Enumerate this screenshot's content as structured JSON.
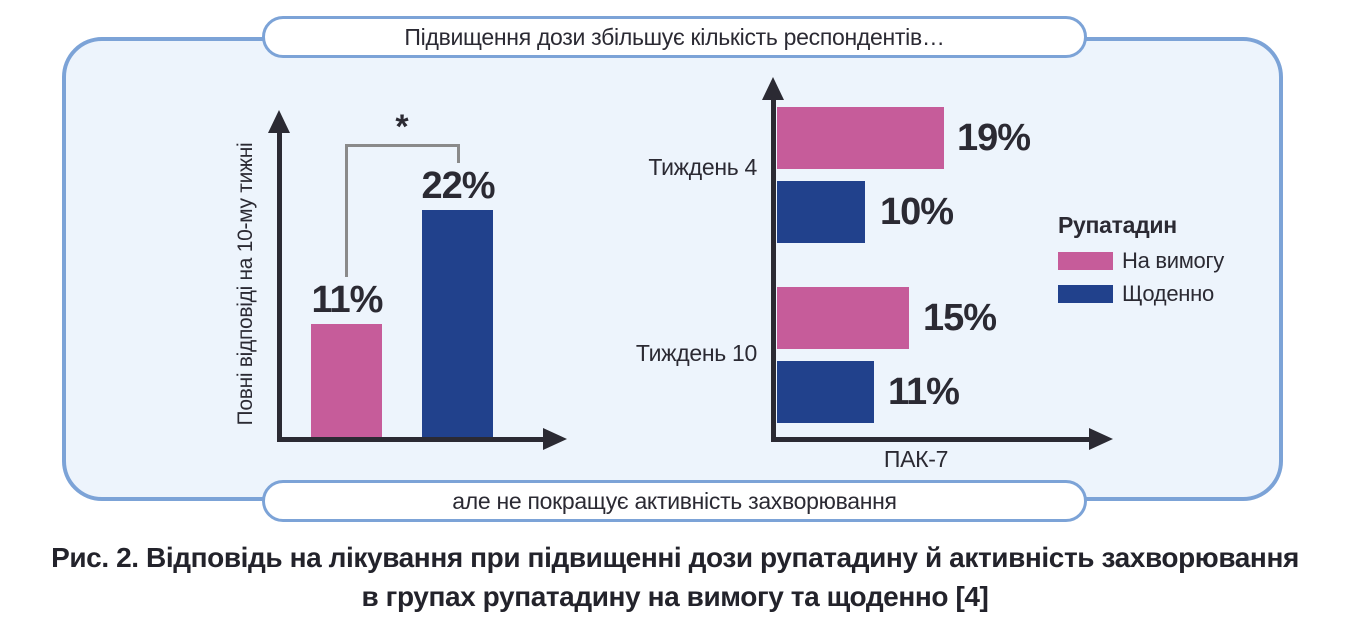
{
  "colors": {
    "on_demand_pink": "#C65C9A",
    "daily_blue": "#21418C",
    "panel_bg": "#EDF4FC",
    "panel_border": "#7CA3D7",
    "axis": "#2B2A33",
    "bracket_gray": "#8A8A8A",
    "caption_text": "#23232B"
  },
  "banners": {
    "top": "Підвищення дози збільшує кількість респондентів…",
    "bottom": "але не покращує активність захворювання"
  },
  "legend": {
    "title": "Рупатадин",
    "items": [
      {
        "label": "На вимогу",
        "color": "#C65C9A"
      },
      {
        "label": "Щоденно",
        "color": "#21418C"
      }
    ]
  },
  "caption": {
    "line1": "Рис. 2. Відповідь на лікування при підвищенні дози рупатадину й активність захворювання",
    "line2": "в групах рупатадину на вимогу та щоденно [4]"
  },
  "chart_data": [
    {
      "id": "complete-responses",
      "type": "bar",
      "orientation": "vertical",
      "title": "",
      "xlabel": "",
      "ylabel": "Повні відповіді на 10-му тижні",
      "categories": [
        "На вимогу",
        "Щоденно"
      ],
      "values": [
        11,
        22
      ],
      "points": [
        {
          "category": "На вимогу",
          "value": 11,
          "label": "11%",
          "color": "#C65C9A"
        },
        {
          "category": "Щоденно",
          "value": 22,
          "label": "22%",
          "color": "#21418C"
        }
      ],
      "significance_marker": "*",
      "ylim": [
        0,
        25
      ],
      "grid": false,
      "legend_position": "none"
    },
    {
      "id": "pak7-disease-activity",
      "type": "bar",
      "orientation": "horizontal",
      "title": "",
      "xlabel": "ПАК-7",
      "ylabel": "",
      "categories": [
        "Тиждень 4",
        "Тиждень 10"
      ],
      "series": [
        {
          "name": "На вимогу",
          "values": [
            19,
            15
          ],
          "color": "#C65C9A"
        },
        {
          "name": "Щоденно",
          "values": [
            10,
            11
          ],
          "color": "#21418C"
        }
      ],
      "bars": [
        {
          "week": "Тиждень 4",
          "regimen": "На вимогу",
          "value": 19,
          "label": "19%"
        },
        {
          "week": "Тиждень 4",
          "regimen": "Щоденно",
          "value": 10,
          "label": "10%"
        },
        {
          "week": "Тиждень 10",
          "regimen": "На вимогу",
          "value": 15,
          "label": "15%"
        },
        {
          "week": "Тиждень 10",
          "regimen": "Щоденно",
          "value": 11,
          "label": "11%"
        }
      ],
      "xlim": [
        0,
        20
      ],
      "grid": false,
      "legend_position": "right"
    }
  ]
}
